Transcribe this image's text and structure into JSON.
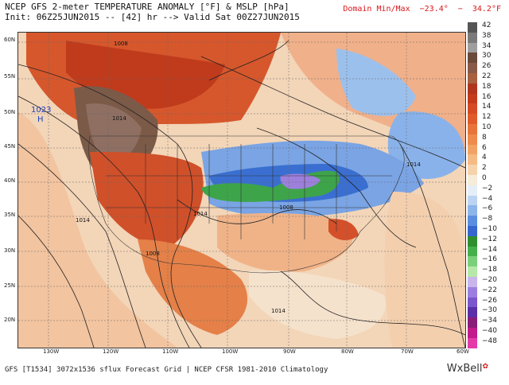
{
  "header": {
    "title": "NCEP GFS 2-meter TEMPERATURE ANOMALY [°F] & MSLP [hPa]",
    "init": "Init: 06Z25JUN2015 -- [42] hr --> Valid Sat 00Z27JUN2015",
    "domain_minmax": "Domain Min/Max  −23.4°  −  34.2°F"
  },
  "map": {
    "lat_labels": [
      "60N",
      "55N",
      "50N",
      "45N",
      "40N",
      "35N",
      "30N",
      "25N",
      "20N"
    ],
    "lon_labels": [
      "130W",
      "120W",
      "110W",
      "100W",
      "90W",
      "80W",
      "70W",
      "60W"
    ],
    "isobar_labels": [
      "1008",
      "1014",
      "1008",
      "1014",
      "1014",
      "1014",
      "1008",
      "1014"
    ],
    "high_pressure": {
      "value": "1023",
      "letter": "H"
    }
  },
  "colorbar": {
    "labels": [
      "42",
      "38",
      "34",
      "30",
      "26",
      "22",
      "18",
      "16",
      "14",
      "12",
      "10",
      "8",
      "6",
      "4",
      "2",
      "0",
      "−2",
      "−4",
      "−6",
      "−8",
      "−10",
      "−12",
      "−14",
      "−16",
      "−18",
      "−20",
      "−22",
      "−26",
      "−30",
      "−34",
      "−40",
      "−48"
    ],
    "colors": [
      "#555555",
      "#7a7a7a",
      "#9e9e9e",
      "#6b4a3a",
      "#8a5a48",
      "#a8603f",
      "#b0351c",
      "#c43b1b",
      "#d64a23",
      "#e05a2a",
      "#e8743a",
      "#ee8b4b",
      "#f2a264",
      "#f5bb85",
      "#f7d3ab",
      "#f5ecd9",
      "#e6eef7",
      "#bcd4f1",
      "#8cb5ea",
      "#5a8fdf",
      "#3567cf",
      "#2f8f2c",
      "#45b04a",
      "#7ad07a",
      "#b6e8a8",
      "#c7b5ec",
      "#9c7ee0",
      "#7b56cc",
      "#5a2fa8",
      "#8a1c7a",
      "#c21a8a",
      "#e43aa8"
    ]
  },
  "footer": {
    "text": "GFS [T1534] 3072x1536 sflux Forecast Grid | NCEP CFSR 1981-2010 Climatology",
    "brand": "WxBell"
  }
}
